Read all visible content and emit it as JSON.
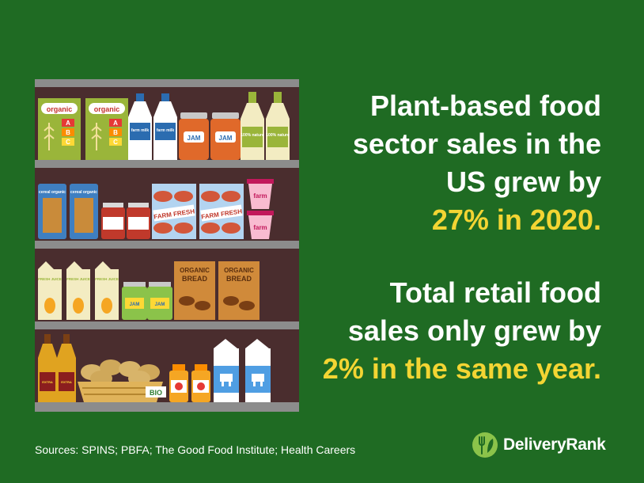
{
  "headline_1": {
    "line_1": "Plant-based food",
    "line_2": "sector sales in the",
    "line_3": "US grew by",
    "highlight": "27% in 2020."
  },
  "headline_2": {
    "line_1": "Total retail food",
    "line_2": "sales only grew by",
    "highlight": "2% in the same year."
  },
  "sources": "Sources: SPINS; PBFA; The Good Food Institute; Health Careers",
  "brand": {
    "name": "DeliveryRank",
    "icon": "fork-leaf-logo-icon"
  },
  "labels": {
    "organic": "organic",
    "abc": [
      "A",
      "B",
      "C"
    ],
    "farm_milk": "farm milk",
    "jam": "JAM",
    "nature": "100% nature",
    "cereal": "cereal organic",
    "farm_fresh": "FARM FRESH",
    "farm": "farm",
    "fresh_juice": "FRESH JUICE",
    "organic_bread": [
      "ORGANIC",
      "BREAD"
    ],
    "bio": "BIO",
    "oil": "EXTRA"
  },
  "colors": {
    "background": "#1f6b23",
    "highlight": "#f3d533",
    "text": "#ffffff",
    "shelf_back": "#4a2d2e",
    "shelf_board": "#8c8c8c"
  }
}
